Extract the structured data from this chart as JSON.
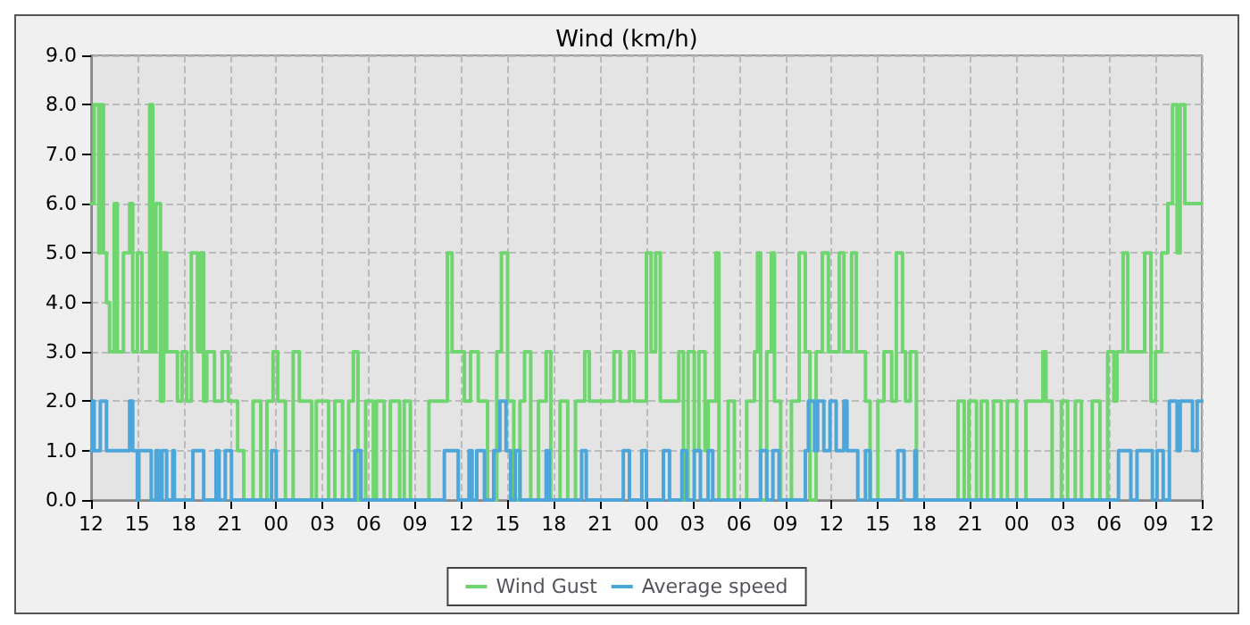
{
  "chart_data": {
    "type": "step",
    "title": "Wind (km/h)",
    "legend": "bottom",
    "grid": true,
    "line_style": "solid",
    "marker": "none",
    "xlim": [
      12,
      84
    ],
    "xticks": [
      12,
      15,
      18,
      21,
      {
        "value": 24,
        "label": "00"
      },
      {
        "value": 27,
        "label": "03"
      },
      {
        "value": 30,
        "label": "06"
      },
      {
        "value": 33,
        "label": "09"
      },
      {
        "value": 36,
        "label": "12"
      },
      {
        "value": 39,
        "label": "15"
      },
      {
        "value": 42,
        "label": "18"
      },
      {
        "value": 45,
        "label": "21"
      },
      {
        "value": 48,
        "label": "00"
      },
      {
        "value": 51,
        "label": "03"
      },
      {
        "value": 54,
        "label": "06"
      },
      {
        "value": 57,
        "label": "09"
      },
      {
        "value": 60,
        "label": "12"
      },
      {
        "value": 63,
        "label": "15"
      },
      {
        "value": 66,
        "label": "18"
      },
      {
        "value": 69,
        "label": "21"
      },
      {
        "value": 72,
        "label": "00"
      },
      {
        "value": 75,
        "label": "03"
      },
      {
        "value": 78,
        "label": "06"
      },
      {
        "value": 81,
        "label": "09"
      },
      {
        "value": 84,
        "label": "12"
      }
    ],
    "ylim": [
      0,
      9
    ],
    "yticks": [
      {
        "value": 0,
        "label": "0.0"
      },
      {
        "value": 1,
        "label": "1.0"
      },
      {
        "value": 2,
        "label": "2.0"
      },
      {
        "value": 3,
        "label": "3.0"
      },
      {
        "value": 4,
        "label": "4.0"
      },
      {
        "value": 5,
        "label": "5.0"
      },
      {
        "value": 6,
        "label": "6.0"
      },
      {
        "value": 7,
        "label": "7.0"
      },
      {
        "value": 8,
        "label": "8.0"
      },
      {
        "value": 9,
        "label": "9.0"
      }
    ],
    "series": [
      {
        "name": "Wind Gust",
        "color": "#6fd66f",
        "x": [
          12,
          12.2,
          12.5,
          12.6,
          12.8,
          13.0,
          13.2,
          13.5,
          13.7,
          14.1,
          14.5,
          14.7,
          15.0,
          15.3,
          15.8,
          16.0,
          16.2,
          16.5,
          16.7,
          16.9,
          17.6,
          17.9,
          18.2,
          18.5,
          18.9,
          19.1,
          19.3,
          19.5,
          20.0,
          20.5,
          20.9,
          21.5,
          21.9,
          22.5,
          23.0,
          23.4,
          23.8,
          24.1,
          24.6,
          25.1,
          25.5,
          26.3,
          26.6,
          27.4,
          27.8,
          28.3,
          28.7,
          29.0,
          29.3,
          29.8,
          30.3,
          30.5,
          31.0,
          31.4,
          32.0,
          32.3,
          32.7,
          33.9,
          35.1,
          35.4,
          36.2,
          36.6,
          37.1,
          37.7,
          38.3,
          38.6,
          39.0,
          39.4,
          39.8,
          40.1,
          40.5,
          41.0,
          41.5,
          41.8,
          42.4,
          42.9,
          43.4,
          44.0,
          44.3,
          45.9,
          46.3,
          46.9,
          47.2,
          48.0,
          48.3,
          48.6,
          48.9,
          50.1,
          50.4,
          50.7,
          51.1,
          51.4,
          51.8,
          52.0,
          52.5,
          52.7,
          53.3,
          53.7,
          54.5,
          55.0,
          55.2,
          55.4,
          55.8,
          56.1,
          56.3,
          56.7,
          57.4,
          57.9,
          58.3,
          58.6,
          59.0,
          59.4,
          59.8,
          60.5,
          60.8,
          61.3,
          61.6,
          62.2,
          62.5,
          63.0,
          63.4,
          63.9,
          64.2,
          64.6,
          64.8,
          65.1,
          65.5,
          68.2,
          68.6,
          68.9,
          69.4,
          69.7,
          70.1,
          70.5,
          71.0,
          71.4,
          72.0,
          72.6,
          73.7,
          73.9,
          74.3,
          74.9,
          75.3,
          75.8,
          76.2,
          76.9,
          77.4,
          77.9,
          78.3,
          78.5,
          78.9,
          79.2,
          80.3,
          80.7,
          81.0,
          81.4,
          81.8,
          82.1,
          82.4,
          82.6,
          82.9,
          84
        ],
        "values": [
          6,
          8,
          5,
          8,
          5,
          4,
          3,
          6,
          3,
          5,
          6,
          3,
          5,
          3,
          8,
          3,
          6,
          2,
          5,
          3,
          2,
          3,
          2,
          5,
          3,
          5,
          2,
          3,
          2,
          3,
          2,
          1,
          0,
          2,
          0,
          2,
          3,
          2,
          0,
          3,
          2,
          0,
          2,
          0,
          2,
          0,
          2,
          3,
          0,
          2,
          0,
          2,
          0,
          2,
          0,
          2,
          0,
          2,
          5,
          3,
          2,
          3,
          2,
          0,
          3,
          5,
          2,
          0,
          2,
          3,
          0,
          2,
          3,
          0,
          2,
          0,
          2,
          3,
          2,
          3,
          2,
          3,
          2,
          5,
          3,
          5,
          2,
          3,
          0,
          3,
          1,
          3,
          1,
          2,
          5,
          0,
          2,
          0,
          2,
          3,
          5,
          0,
          3,
          5,
          2,
          0,
          2,
          5,
          3,
          0,
          3,
          5,
          3,
          5,
          3,
          5,
          3,
          2,
          0,
          2,
          3,
          2,
          5,
          3,
          2,
          3,
          0,
          2,
          0,
          2,
          0,
          2,
          0,
          2,
          0,
          2,
          0,
          2,
          3,
          2,
          0,
          2,
          0,
          2,
          0,
          2,
          0,
          3,
          2,
          3,
          5,
          3,
          5,
          2,
          3,
          5,
          6,
          8,
          5,
          8,
          6,
          6
        ]
      },
      {
        "name": "Average speed",
        "color": "#4da6d9",
        "x": [
          12,
          12.1,
          12.2,
          12.6,
          13.0,
          14.5,
          14.7,
          15.0,
          15.1,
          15.9,
          16.2,
          16.4,
          16.6,
          16.9,
          17.3,
          17.4,
          18.6,
          19.3,
          20.1,
          20.3,
          20.7,
          21.1,
          23.7,
          24.0,
          29.1,
          29.5,
          34.9,
          35.8,
          36.5,
          36.7,
          37.0,
          37.5,
          38.1,
          38.5,
          38.9,
          39.2,
          39.5,
          39.8,
          41.5,
          41.7,
          43.8,
          44.1,
          46.5,
          46.9,
          47.7,
          48.0,
          49.1,
          49.5,
          50.3,
          50.6,
          51.1,
          51.5,
          52.0,
          52.3,
          55.4,
          55.8,
          56.2,
          56.6,
          58.3,
          58.5,
          58.9,
          59.1,
          59.5,
          59.9,
          60.3,
          60.8,
          61.0,
          61.7,
          62.2,
          62.5,
          64.3,
          64.7,
          65.4,
          65.5,
          78.6,
          79.4,
          79.8,
          80.8,
          81.1,
          81.5,
          81.9,
          82.4,
          82.6,
          83.4,
          83.7,
          84
        ],
        "values": [
          1,
          2,
          1,
          2,
          1,
          2,
          1,
          0,
          1,
          0,
          1,
          0,
          1,
          0,
          1,
          0,
          1,
          0,
          1,
          0,
          1,
          0,
          1,
          0,
          1,
          0,
          1,
          0,
          1,
          0,
          1,
          0,
          1,
          2,
          1,
          0,
          1,
          0,
          1,
          0,
          1,
          0,
          1,
          0,
          1,
          0,
          1,
          0,
          1,
          0,
          1,
          0,
          1,
          0,
          1,
          0,
          1,
          0,
          1,
          2,
          1,
          2,
          1,
          2,
          1,
          2,
          1,
          0,
          1,
          0,
          1,
          0,
          1,
          0,
          1,
          0,
          1,
          0,
          1,
          0,
          2,
          1,
          2,
          1,
          2,
          2
        ]
      }
    ]
  }
}
